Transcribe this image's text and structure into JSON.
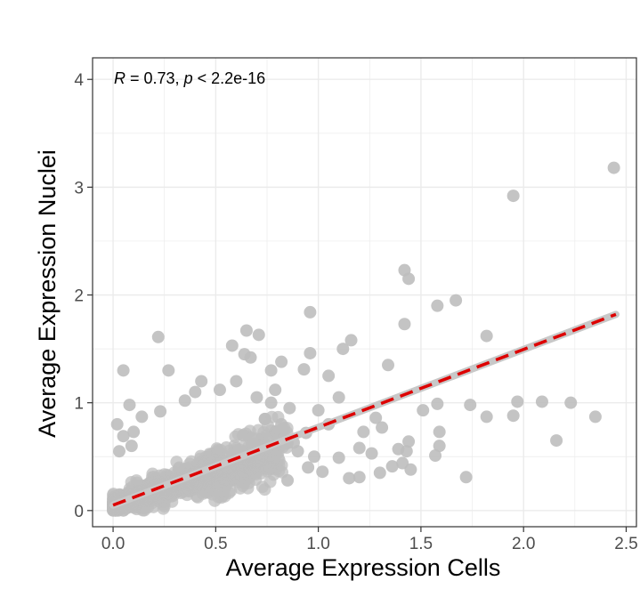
{
  "chart_data": {
    "type": "scatter",
    "title": "",
    "xlabel": "Average Expression Cells",
    "ylabel": "Average Expression Nuclei",
    "xlim": [
      -0.1,
      2.55
    ],
    "ylim": [
      -0.15,
      4.2
    ],
    "x_ticks": [
      0.0,
      0.5,
      1.0,
      1.5,
      2.0,
      2.5
    ],
    "x_tick_labels": [
      "0.0",
      "0.5",
      "1.0",
      "1.5",
      "2.0",
      "2.5"
    ],
    "y_ticks": [
      0,
      1,
      2,
      3,
      4
    ],
    "y_tick_labels": [
      "0",
      "1",
      "2",
      "3",
      "4"
    ],
    "grid": true,
    "annotation": {
      "r_symbol": "R",
      "r_text": " = 0.73, ",
      "p_symbol": "p",
      "p_text": " < 2.2e-16"
    },
    "colors": {
      "points": "#bebebe",
      "regression_line": "#dd0000",
      "confidence_band": "#c8c8c8",
      "grid": "#ebebeb",
      "panel_border": "#333333"
    },
    "regression_line": {
      "x": [
        0.0,
        2.45
      ],
      "y": [
        0.05,
        1.82
      ]
    },
    "points": [
      {
        "x": 2.44,
        "y": 3.18
      },
      {
        "x": 1.95,
        "y": 2.92
      },
      {
        "x": 1.42,
        "y": 2.23
      },
      {
        "x": 1.44,
        "y": 2.15
      },
      {
        "x": 1.67,
        "y": 1.95
      },
      {
        "x": 1.58,
        "y": 1.9
      },
      {
        "x": 0.96,
        "y": 1.84
      },
      {
        "x": 1.42,
        "y": 1.73
      },
      {
        "x": 0.65,
        "y": 1.67
      },
      {
        "x": 0.71,
        "y": 1.63
      },
      {
        "x": 0.22,
        "y": 1.61
      },
      {
        "x": 1.82,
        "y": 1.62
      },
      {
        "x": 1.16,
        "y": 1.58
      },
      {
        "x": 0.58,
        "y": 1.53
      },
      {
        "x": 1.12,
        "y": 1.5
      },
      {
        "x": 0.96,
        "y": 1.46
      },
      {
        "x": 0.64,
        "y": 1.45
      },
      {
        "x": 0.67,
        "y": 1.42
      },
      {
        "x": 0.82,
        "y": 1.38
      },
      {
        "x": 1.34,
        "y": 1.35
      },
      {
        "x": 0.05,
        "y": 1.3
      },
      {
        "x": 0.27,
        "y": 1.3
      },
      {
        "x": 0.77,
        "y": 1.3
      },
      {
        "x": 0.93,
        "y": 1.31
      },
      {
        "x": 1.05,
        "y": 1.25
      },
      {
        "x": 1.97,
        "y": 1.01
      },
      {
        "x": 2.09,
        "y": 1.01
      },
      {
        "x": 2.23,
        "y": 1.0
      },
      {
        "x": 1.58,
        "y": 0.99
      },
      {
        "x": 1.74,
        "y": 0.98
      },
      {
        "x": 1.51,
        "y": 0.93
      },
      {
        "x": 1.95,
        "y": 0.88
      },
      {
        "x": 1.82,
        "y": 0.87
      },
      {
        "x": 2.35,
        "y": 0.87
      },
      {
        "x": 1.28,
        "y": 0.86
      },
      {
        "x": 1.31,
        "y": 0.77
      },
      {
        "x": 1.22,
        "y": 0.73
      },
      {
        "x": 1.59,
        "y": 0.73
      },
      {
        "x": 2.16,
        "y": 0.65
      },
      {
        "x": 1.44,
        "y": 0.64
      },
      {
        "x": 1.59,
        "y": 0.6
      },
      {
        "x": 1.2,
        "y": 0.58
      },
      {
        "x": 1.39,
        "y": 0.57
      },
      {
        "x": 1.43,
        "y": 0.55
      },
      {
        "x": 1.26,
        "y": 0.53
      },
      {
        "x": 1.57,
        "y": 0.51
      },
      {
        "x": 1.1,
        "y": 0.49
      },
      {
        "x": 1.41,
        "y": 0.44
      },
      {
        "x": 1.36,
        "y": 0.41
      },
      {
        "x": 1.45,
        "y": 0.38
      },
      {
        "x": 1.3,
        "y": 0.35
      },
      {
        "x": 1.72,
        "y": 0.31
      },
      {
        "x": 1.2,
        "y": 0.31
      },
      {
        "x": 1.15,
        "y": 0.3
      },
      {
        "x": 1.02,
        "y": 0.36
      },
      {
        "x": 0.98,
        "y": 0.5
      },
      {
        "x": 0.94,
        "y": 0.72
      },
      {
        "x": 0.88,
        "y": 0.63
      },
      {
        "x": 0.86,
        "y": 0.95
      },
      {
        "x": 0.77,
        "y": 1.0
      },
      {
        "x": 0.79,
        "y": 1.12
      },
      {
        "x": 1.1,
        "y": 1.05
      },
      {
        "x": 1.0,
        "y": 0.93
      },
      {
        "x": 1.05,
        "y": 0.8
      },
      {
        "x": 0.1,
        "y": 0.73
      },
      {
        "x": 0.08,
        "y": 0.98
      },
      {
        "x": 0.14,
        "y": 0.87
      },
      {
        "x": 0.23,
        "y": 0.92
      },
      {
        "x": 0.02,
        "y": 0.8
      },
      {
        "x": 0.05,
        "y": 0.69
      },
      {
        "x": 0.09,
        "y": 0.6
      },
      {
        "x": 0.03,
        "y": 0.55
      },
      {
        "x": 0.4,
        "y": 1.1
      },
      {
        "x": 0.43,
        "y": 1.2
      },
      {
        "x": 0.52,
        "y": 1.12
      },
      {
        "x": 0.35,
        "y": 1.02
      },
      {
        "x": 0.6,
        "y": 1.2
      },
      {
        "x": 0.7,
        "y": 1.05
      },
      {
        "x": 0.82,
        "y": 0.8
      },
      {
        "x": 0.9,
        "y": 0.55
      },
      {
        "x": 0.74,
        "y": 0.85
      },
      {
        "x": 0.68,
        "y": 0.62
      },
      {
        "x": 0.95,
        "y": 0.4
      },
      {
        "x": 0.85,
        "y": 0.28
      }
    ],
    "cloud": {
      "n": 1000,
      "x_max": 0.85,
      "slope": 0.62,
      "intercept": 0.05,
      "spread": 0.13
    }
  }
}
